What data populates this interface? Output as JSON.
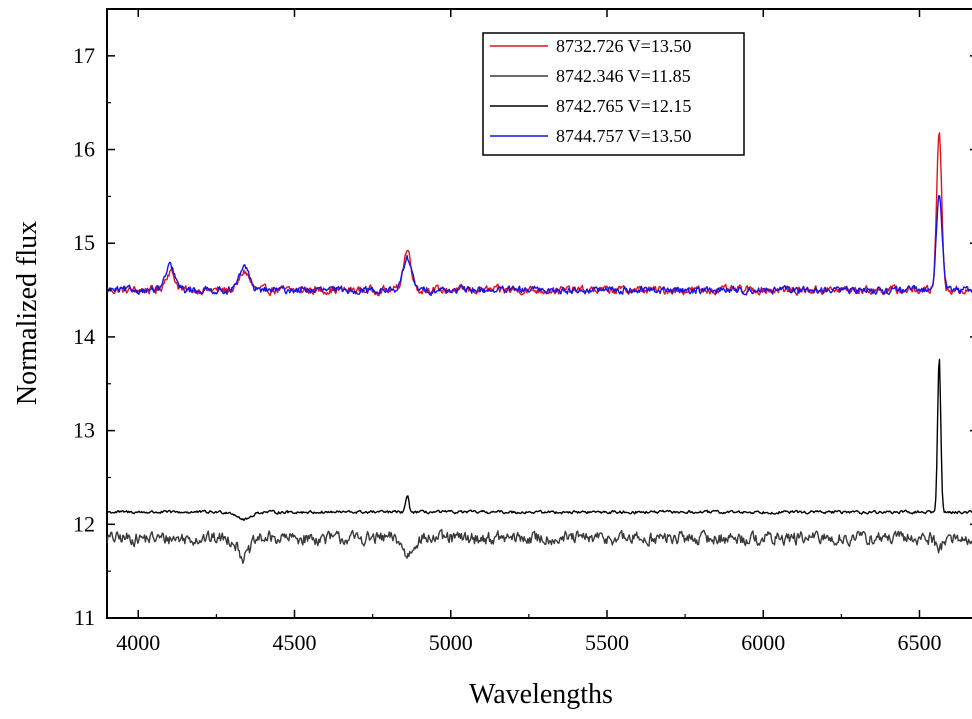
{
  "chart_data": {
    "type": "line",
    "title": "",
    "xlabel": "Wavelengths",
    "ylabel": "Normalized flux",
    "xlim": [
      3900,
      6700
    ],
    "ylim": [
      11,
      17.5
    ],
    "xticks": [
      4000,
      4500,
      5000,
      5500,
      6000,
      6500
    ],
    "xtick_labels": [
      "4000",
      "4500",
      "5000",
      "5500",
      "6000",
      "6500"
    ],
    "yticks": [
      11,
      12,
      13,
      14,
      15,
      16,
      17
    ],
    "ytick_labels": [
      "11",
      "12",
      "13",
      "14",
      "15",
      "16",
      "17"
    ],
    "grid": false,
    "legend_position": "top-right",
    "series": [
      {
        "name": "8732.726 V=13.50",
        "color": "#e0141e",
        "baseline": 14.5,
        "noise": 0.07,
        "features": [
          {
            "center": 4102,
            "height": 0.2,
            "width": 15
          },
          {
            "center": 4340,
            "height": 0.2,
            "width": 15
          },
          {
            "center": 4861,
            "height": 0.42,
            "width": 13
          },
          {
            "center": 6563,
            "height": 1.7,
            "width": 8
          }
        ]
      },
      {
        "name": "8742.346 V=11.85",
        "color": "#3a3a3a",
        "baseline": 11.85,
        "noise": 0.11,
        "features": [
          {
            "center": 4340,
            "height": -0.2,
            "width": 18
          },
          {
            "center": 4861,
            "height": -0.18,
            "width": 15
          },
          {
            "center": 6563,
            "height": -0.1,
            "width": 10
          }
        ]
      },
      {
        "name": "8742.765 V=12.15",
        "color": "#000000",
        "baseline": 12.13,
        "noise": 0.025,
        "features": [
          {
            "center": 4340,
            "height": -0.08,
            "width": 20
          },
          {
            "center": 4861,
            "height": 0.18,
            "width": 5
          },
          {
            "center": 6563,
            "height": 1.65,
            "width": 5
          }
        ]
      },
      {
        "name": "8744.757 V=13.50",
        "color": "#1414e6",
        "baseline": 14.5,
        "noise": 0.06,
        "features": [
          {
            "center": 4102,
            "height": 0.25,
            "width": 15
          },
          {
            "center": 4340,
            "height": 0.25,
            "width": 15
          },
          {
            "center": 4861,
            "height": 0.35,
            "width": 13
          },
          {
            "center": 6563,
            "height": 1.05,
            "width": 9
          }
        ]
      }
    ]
  }
}
